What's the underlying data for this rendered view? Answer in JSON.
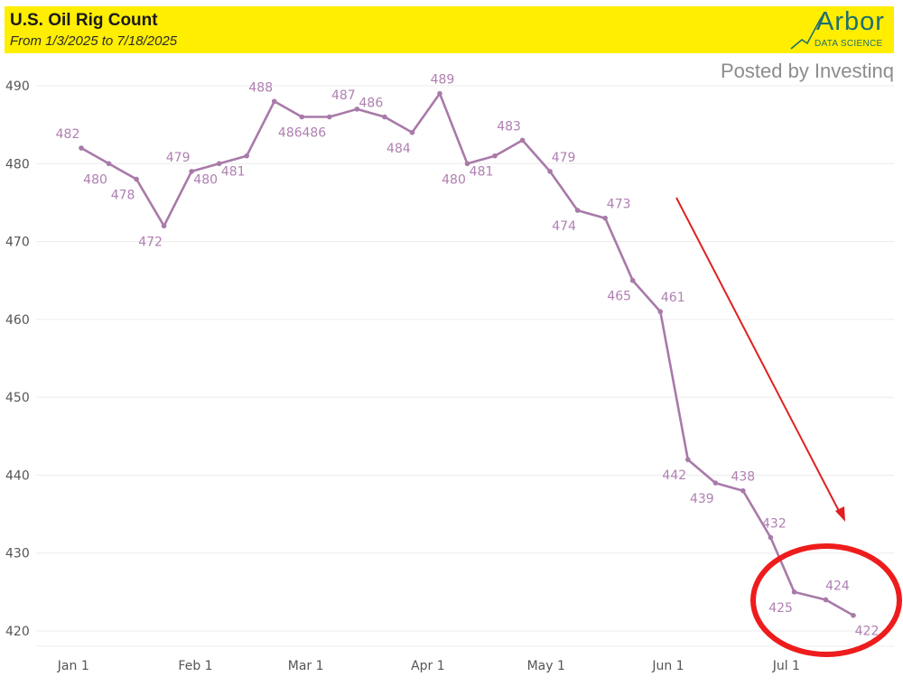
{
  "header": {
    "title": "U.S. Oil Rig Count",
    "subtitle": "From 1/3/2025 to 7/18/2025",
    "logo_word": "Arbor",
    "logo_sub": "DATA SCIENCE"
  },
  "watermark": "Posted by Investinq",
  "colors": {
    "header_bg": "#ffee00",
    "line": "#a87aa9",
    "label": "#b07fb2",
    "arrow": "#e02020",
    "circle": "#ee1c1c",
    "logo": "#1f6e72"
  },
  "chart_data": {
    "type": "line",
    "title": "U.S. Oil Rig Count",
    "subtitle": "From 1/3/2025 to 7/18/2025",
    "xlabel": "",
    "ylabel": "",
    "x": [
      "2025-01-03",
      "2025-01-10",
      "2025-01-17",
      "2025-01-24",
      "2025-01-31",
      "2025-02-07",
      "2025-02-14",
      "2025-02-21",
      "2025-02-28",
      "2025-03-07",
      "2025-03-14",
      "2025-03-21",
      "2025-03-28",
      "2025-04-04",
      "2025-04-11",
      "2025-04-18",
      "2025-04-25",
      "2025-05-02",
      "2025-05-09",
      "2025-05-16",
      "2025-05-23",
      "2025-05-30",
      "2025-06-06",
      "2025-06-13",
      "2025-06-20",
      "2025-06-27",
      "2025-07-03",
      "2025-07-11",
      "2025-07-18"
    ],
    "values": [
      482,
      480,
      478,
      472,
      479,
      480,
      481,
      488,
      486,
      486,
      487,
      486,
      484,
      489,
      480,
      481,
      483,
      479,
      474,
      473,
      465,
      461,
      442,
      439,
      438,
      432,
      425,
      424,
      422
    ],
    "ylim": [
      418,
      492
    ],
    "yticks": [
      420,
      430,
      440,
      450,
      460,
      470,
      480,
      490
    ],
    "xticks": [
      {
        "date": "2025-01-01",
        "label": "Jan 1"
      },
      {
        "date": "2025-02-01",
        "label": "Feb 1"
      },
      {
        "date": "2025-03-01",
        "label": "Mar 1"
      },
      {
        "date": "2025-04-01",
        "label": "Apr 1"
      },
      {
        "date": "2025-05-01",
        "label": "May 1"
      },
      {
        "date": "2025-06-01",
        "label": "Jun 1"
      },
      {
        "date": "2025-07-01",
        "label": "Jul 1"
      }
    ],
    "xrange": [
      "2024-12-27",
      "2025-07-31"
    ],
    "grid": true,
    "legend": "none"
  }
}
